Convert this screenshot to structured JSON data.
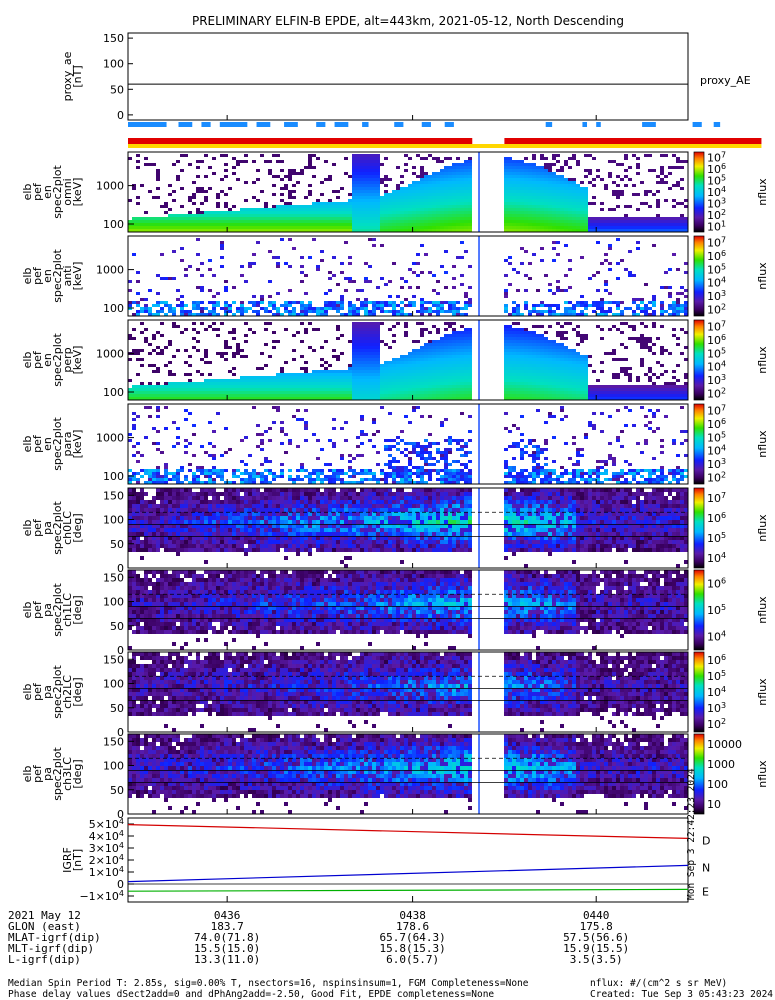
{
  "title": "PRELIMINARY ELFIN-B EPDE, alt=443km, 2021-05-12, North Descending",
  "chart_data": {
    "type": "heatmap",
    "time_axis": {
      "start": "04:34:55",
      "end": "04:41:00",
      "ticks": [
        "0436",
        "0438",
        "0440"
      ]
    },
    "proxy_ae": {
      "ylabel_lines": [
        "proxy_ae",
        "[nT]"
      ],
      "legend": "proxy_AE",
      "yticks": [
        "150",
        "100",
        "50",
        "0"
      ],
      "ylim": [
        -10,
        160
      ],
      "value": 60
    },
    "status_bars": {
      "blue_segments_min": [
        [
          0.0,
          0.42
        ],
        [
          0.55,
          0.7
        ],
        [
          0.8,
          0.9
        ],
        [
          1.0,
          1.3
        ],
        [
          1.4,
          1.55
        ],
        [
          1.7,
          1.85
        ],
        [
          2.05,
          2.15
        ],
        [
          2.25,
          2.4
        ],
        [
          2.55,
          2.62
        ],
        [
          2.9,
          3.0
        ],
        [
          3.2,
          3.3
        ],
        [
          3.45,
          3.55
        ],
        [
          4.55,
          4.62
        ],
        [
          4.95,
          5.0
        ],
        [
          5.1,
          5.15
        ],
        [
          5.6,
          5.75
        ],
        [
          6.15,
          6.25
        ],
        [
          6.38,
          6.45
        ]
      ],
      "red_segments_min": [
        [
          0.0,
          3.75
        ],
        [
          4.1,
          6.9
        ]
      ],
      "yellow_segment_min": [
        0.0,
        6.9
      ]
    },
    "energy_panels": [
      {
        "ylabel_lines": [
          "elb",
          "pef",
          "en",
          "spec2plot",
          "omni",
          "[keV]"
        ],
        "yticks": [
          "1000",
          "100"
        ],
        "cbar_ticks": [
          "10^7",
          "10^6",
          "10^5",
          "10^4",
          "10^3",
          "10^2",
          "10^1"
        ],
        "cbar_label": "nflux",
        "kind": "omni",
        "intensity": 1.0
      },
      {
        "ylabel_lines": [
          "elb",
          "pef",
          "en",
          "spec2plot",
          "anti",
          "[keV]"
        ],
        "yticks": [
          "1000",
          "100"
        ],
        "cbar_ticks": [
          "10^7",
          "10^6",
          "10^5",
          "10^4",
          "10^3",
          "10^2"
        ],
        "cbar_label": "nflux",
        "kind": "anti",
        "intensity": 0.25
      },
      {
        "ylabel_lines": [
          "elb",
          "pef",
          "en",
          "spec2plot",
          "perp",
          "[keV]"
        ],
        "yticks": [
          "1000",
          "100"
        ],
        "cbar_ticks": [
          "10^7",
          "10^6",
          "10^5",
          "10^4",
          "10^3",
          "10^2"
        ],
        "cbar_label": "nflux",
        "kind": "omni",
        "intensity": 0.9
      },
      {
        "ylabel_lines": [
          "elb",
          "pef",
          "en",
          "spec2plot",
          "para",
          "[keV]"
        ],
        "yticks": [
          "1000",
          "100"
        ],
        "cbar_ticks": [
          "10^7",
          "10^6",
          "10^5",
          "10^4",
          "10^3",
          "10^2"
        ],
        "cbar_label": "nflux",
        "kind": "para",
        "intensity": 0.3
      }
    ],
    "pitch_panels": [
      {
        "ylabel_lines": [
          "elb",
          "pef",
          "pa",
          "spec2plot",
          "ch0LC",
          "[deg]"
        ],
        "yticks": [
          "150",
          "100",
          "50",
          "0"
        ],
        "cbar_ticks": [
          "10^7",
          "10^6",
          "10^5",
          "10^4"
        ],
        "cbar_label": "nflux",
        "intensity": 1.0
      },
      {
        "ylabel_lines": [
          "elb",
          "pef",
          "pa",
          "spec2plot",
          "ch1LC",
          "[deg]"
        ],
        "yticks": [
          "150",
          "100",
          "50",
          "0"
        ],
        "cbar_ticks": [
          "10^6",
          "10^5",
          "10^4"
        ],
        "cbar_label": "nflux",
        "intensity": 0.8
      },
      {
        "ylabel_lines": [
          "elb",
          "pef",
          "pa",
          "spec2plot",
          "ch2LC",
          "[deg]"
        ],
        "yticks": [
          "150",
          "100",
          "50",
          "0"
        ],
        "cbar_ticks": [
          "10^6",
          "10^5",
          "10^4",
          "10^3",
          "10^2"
        ],
        "cbar_label": "nflux",
        "intensity": 0.7
      },
      {
        "ylabel_lines": [
          "elb",
          "pef",
          "pa",
          "spec2plot",
          "ch3LC",
          "[deg]"
        ],
        "yticks": [
          "150",
          "100",
          "50",
          "0"
        ],
        "cbar_ticks": [
          "10000",
          "1000",
          "100",
          "10"
        ],
        "cbar_label": "nflux",
        "intensity": 0.9
      }
    ],
    "igrf": {
      "ylabel_lines": [
        "IGRF",
        "[nT]"
      ],
      "yticks": [
        "5×10^4",
        "4×10^4",
        "3×10^4",
        "2×10^4",
        "1×10^4",
        "0",
        "−1×10^4"
      ],
      "ylim": [
        -15000,
        55000
      ],
      "series": [
        {
          "name": "D",
          "color": "#d40000",
          "start": 49500,
          "end": 38000
        },
        {
          "name": "N",
          "color": "#0000d0",
          "start": 2000,
          "end": 15500
        },
        {
          "name": "E",
          "color": "#00b000",
          "start": -6000,
          "end": -4500
        }
      ],
      "side_stamp": "Mon Sep  3 22:42:23 2024"
    },
    "orbit_table": {
      "labels": [
        "2021 May 12",
        "GLON (east)",
        "MLAT-igrf(dip)",
        "MLT-igrf(dip)",
        "L-igrf(dip)"
      ],
      "columns": [
        {
          "time": "0436",
          "values": [
            "183.7",
            "74.0(71.8)",
            "15.5(15.0)",
            "13.3(11.0)"
          ]
        },
        {
          "time": "0438",
          "values": [
            "178.6",
            "65.7(64.3)",
            "15.8(15.3)",
            "6.0(5.7)"
          ]
        },
        {
          "time": "0440",
          "values": [
            "175.8",
            "57.5(56.6)",
            "15.9(15.5)",
            "3.5(3.5)"
          ]
        }
      ]
    }
  },
  "footer": {
    "line1": "Median Spin Period T: 2.85s, sig=0.00% T, nsectors=16, nspinsinsum=1, FGM Completeness=None",
    "line2": "Phase delay values dSect2add=0 and dPhAng2add=-2.50, Good Fit, EPDE completeness=None",
    "units": "nflux: #/(cm^2 s sr MeV)",
    "created": "Created: Tue Sep  3 05:43:23 2024"
  },
  "colors": {
    "red": "#e00000",
    "blue": "#1a8cff",
    "yellow": "#ffd700",
    "frame": "#000000"
  }
}
